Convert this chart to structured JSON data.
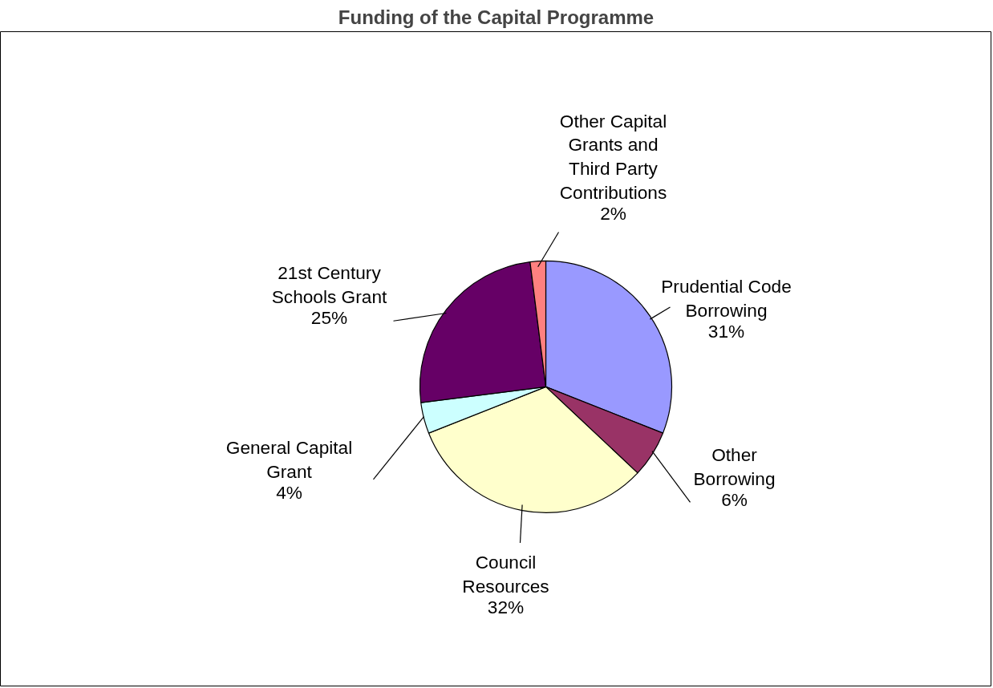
{
  "chart_data": {
    "type": "pie",
    "title": "Funding of the Capital Programme",
    "categories": [
      "Prudential Code\nBorrowing",
      "Other\nBorrowing",
      "Council\nResources",
      "General Capital\nGrant",
      "21st Century\nSchools Grant",
      "Other Capital\nGrants and\nThird Party\nContributions"
    ],
    "values": [
      31,
      6,
      32,
      4,
      25,
      2
    ],
    "colors": [
      "#9999ff",
      "#993366",
      "#ffffcc",
      "#ccffff",
      "#660066",
      "#ff8080"
    ],
    "value_labels": [
      "31%",
      "6%",
      "32%",
      "4%",
      "25%",
      "2%"
    ]
  }
}
